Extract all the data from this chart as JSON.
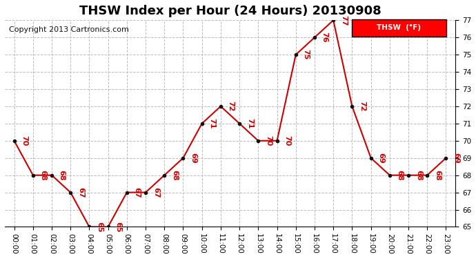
{
  "title": "THSW Index per Hour (24 Hours) 20130908",
  "copyright": "Copyright 2013 Cartronics.com",
  "legend_label": "THSW  (°F)",
  "hours": [
    "00:00",
    "01:00",
    "02:00",
    "03:00",
    "04:00",
    "05:00",
    "06:00",
    "07:00",
    "08:00",
    "09:00",
    "10:00",
    "11:00",
    "12:00",
    "13:00",
    "14:00",
    "15:00",
    "16:00",
    "17:00",
    "18:00",
    "19:00",
    "20:00",
    "21:00",
    "22:00",
    "23:00"
  ],
  "values": [
    70,
    68,
    68,
    67,
    65,
    65,
    67,
    67,
    68,
    69,
    71,
    72,
    71,
    70,
    70,
    75,
    76,
    77,
    72,
    69,
    68,
    68,
    68,
    69
  ],
  "ylim": [
    65.0,
    77.0
  ],
  "yticks": [
    65.0,
    66.0,
    67.0,
    68.0,
    69.0,
    70.0,
    71.0,
    72.0,
    73.0,
    74.0,
    75.0,
    76.0,
    77.0
  ],
  "line_color": "#cc0000",
  "marker_color": "#111111",
  "label_color": "#cc0000",
  "bg_color": "#ffffff",
  "grid_color": "#bbbbbb",
  "title_fontsize": 13,
  "label_fontsize": 8,
  "tick_fontsize": 7.5,
  "copyright_fontsize": 8
}
